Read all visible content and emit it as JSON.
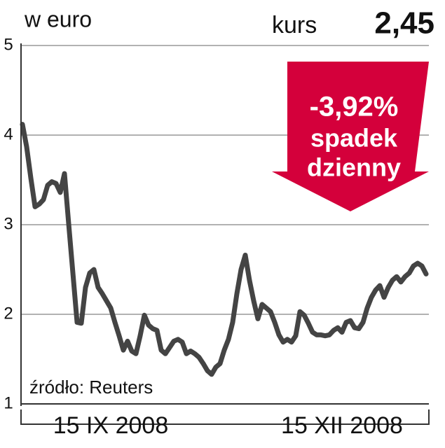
{
  "chart_data": {
    "type": "line",
    "unit_label": "w euro",
    "kurs_label": "kurs",
    "kurs_value": "2,45",
    "change": "-3,92%",
    "change_text": [
      "spadek",
      "dzienny"
    ],
    "source": "źródło: Reuters",
    "categories": [
      null,
      null,
      null,
      null,
      null,
      null,
      null,
      null,
      null,
      null,
      null,
      null,
      null,
      null,
      null,
      null,
      null,
      null,
      null,
      null,
      null,
      "15 IX 2008",
      null,
      null,
      null,
      null,
      null,
      null,
      null,
      null,
      null,
      null,
      null,
      null,
      null,
      null,
      null,
      null,
      null,
      null,
      null,
      null,
      null,
      null,
      null,
      null,
      null,
      null,
      null,
      null,
      null,
      null,
      null,
      null,
      null,
      null,
      null,
      null,
      null,
      null,
      null,
      null,
      null,
      null,
      null,
      null,
      null,
      null,
      null,
      null,
      null,
      null,
      null,
      null,
      null,
      null,
      "15 XII 2008",
      null,
      null,
      null,
      null,
      null,
      null,
      null,
      null,
      null,
      null,
      null,
      null,
      null,
      null,
      null,
      null,
      null,
      null,
      null,
      null
    ],
    "series": [
      {
        "color": "#444444",
        "values": [
          4.12,
          3.87,
          3.52,
          3.2,
          3.23,
          3.28,
          3.44,
          3.48,
          3.46,
          3.36,
          3.57,
          3.01,
          2.46,
          1.91,
          1.9,
          2.3,
          2.46,
          2.5,
          2.3,
          2.23,
          2.15,
          2.07,
          1.91,
          1.76,
          1.6,
          1.7,
          1.59,
          1.56,
          1.76,
          1.99,
          1.88,
          1.84,
          1.82,
          1.6,
          1.56,
          1.63,
          1.7,
          1.72,
          1.69,
          1.56,
          1.59,
          1.56,
          1.52,
          1.45,
          1.37,
          1.33,
          1.41,
          1.45,
          1.6,
          1.72,
          1.91,
          2.23,
          2.5,
          2.66,
          2.38,
          2.15,
          1.95,
          2.11,
          2.07,
          2.03,
          1.91,
          1.77,
          1.69,
          1.72,
          1.69,
          1.76,
          2.03,
          1.99,
          1.9,
          1.8,
          1.77,
          1.77,
          1.76,
          1.77,
          1.82,
          1.85,
          1.8,
          1.91,
          1.93,
          1.85,
          1.84,
          1.91,
          2.07,
          2.19,
          2.27,
          2.32,
          2.19,
          2.3,
          2.38,
          2.42,
          2.36,
          2.42,
          2.46,
          2.54,
          2.57,
          2.54,
          2.45
        ]
      }
    ],
    "ylim": [
      1,
      5
    ],
    "yticks": [
      1,
      2,
      3,
      4,
      5
    ],
    "grid": true,
    "arrow_color": "#d4003b"
  }
}
